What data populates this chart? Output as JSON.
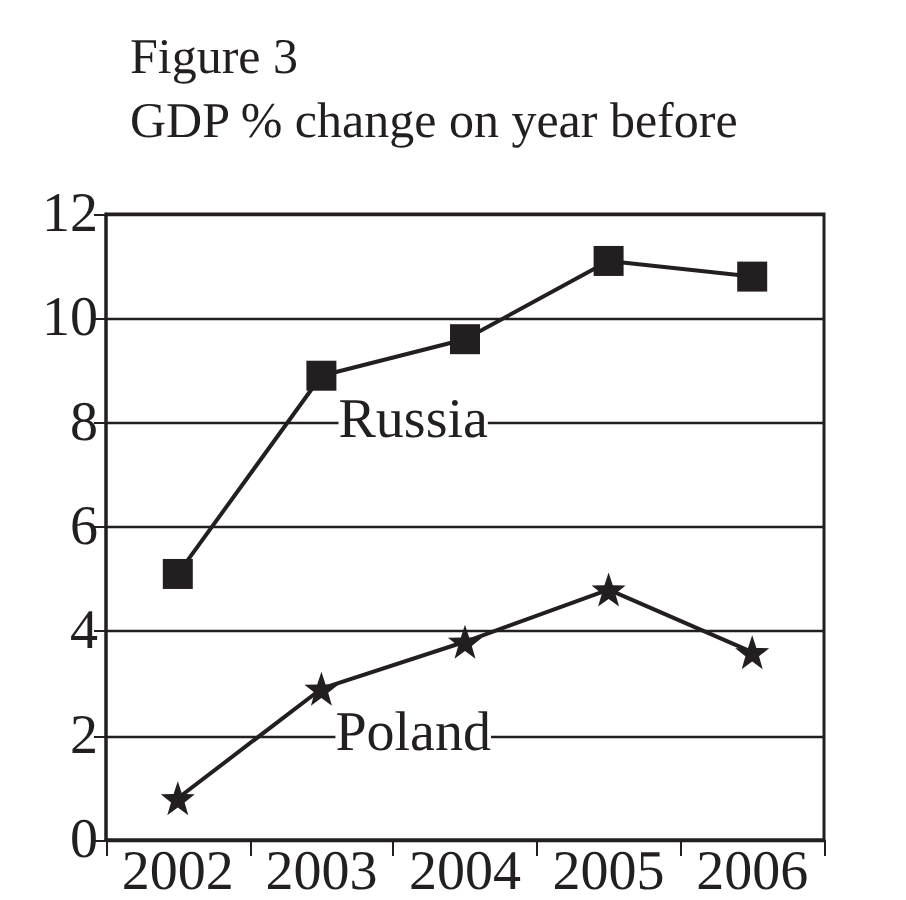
{
  "chart_data": {
    "type": "line",
    "title": "Figure 3\nGDP % change on year before",
    "categories": [
      "2002",
      "2003",
      "2004",
      "2005",
      "2006"
    ],
    "series": [
      {
        "name": "Russia",
        "color": "#231f20",
        "marker": "square",
        "values": [
          5.1,
          8.9,
          9.6,
          11.1,
          10.8
        ]
      },
      {
        "name": "Poland",
        "color": "#231f20",
        "marker": "star",
        "values": [
          0.8,
          2.9,
          3.8,
          4.8,
          3.6
        ]
      }
    ],
    "ylim": [
      0,
      12
    ],
    "yticks": [
      0,
      2,
      4,
      6,
      8,
      10,
      12
    ],
    "grid": "y",
    "legend": false,
    "line_style": "solid"
  }
}
